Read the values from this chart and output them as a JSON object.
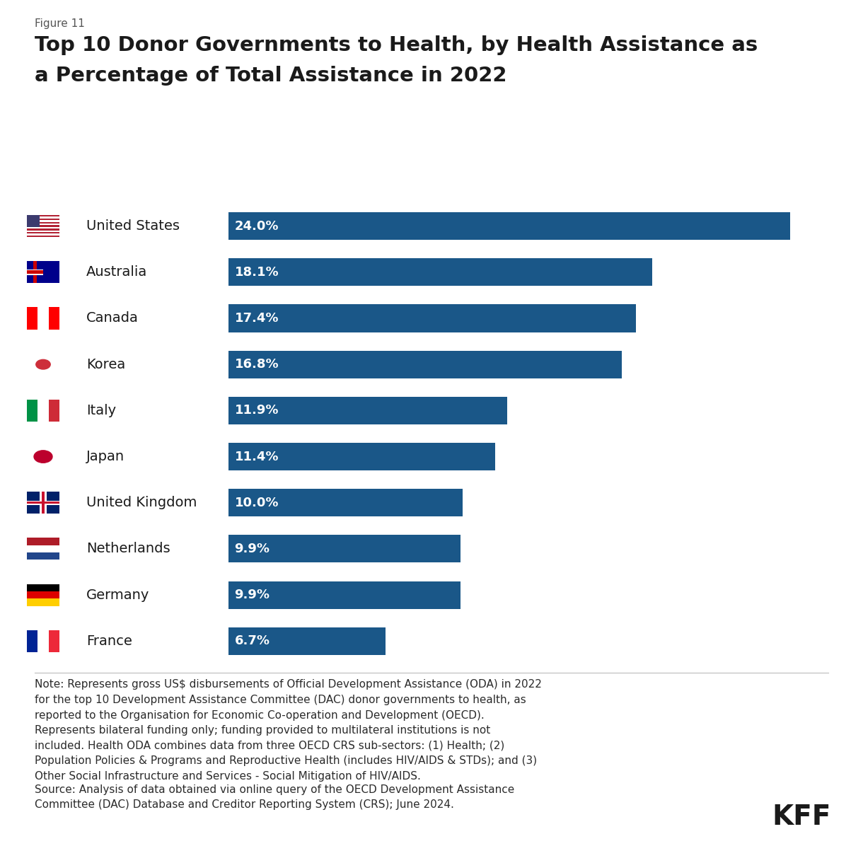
{
  "figure_label": "Figure 11",
  "title_line1": "Top 10 Donor Governments to Health, by Health Assistance as",
  "title_line2": "a Percentage of Total Assistance in 2022",
  "countries": [
    "United States",
    "Australia",
    "Canada",
    "Korea",
    "Italy",
    "Japan",
    "United Kingdom",
    "Netherlands",
    "Germany",
    "France"
  ],
  "values": [
    24.0,
    18.1,
    17.4,
    16.8,
    11.9,
    11.4,
    10.0,
    9.9,
    9.9,
    6.7
  ],
  "labels": [
    "24.0%",
    "18.1%",
    "17.4%",
    "16.8%",
    "11.9%",
    "11.4%",
    "10.0%",
    "9.9%",
    "9.9%",
    "6.7%"
  ],
  "bar_color": "#1a5788",
  "bar_text_color": "#ffffff",
  "background_color": "#ffffff",
  "text_color": "#1a1a1a",
  "note_color": "#2b2b2b",
  "note_text": "Note: Represents gross US$ disbursements of Official Development Assistance (ODA) in 2022\nfor the top 10 Development Assistance Committee (DAC) donor governments to health, as\nreported to the Organisation for Economic Co-operation and Development (OECD).\nRepresents bilateral funding only; funding provided to multilateral institutions is not\nincluded. Health ODA combines data from three OECD CRS sub-sectors: (1) Health; (2)\nPopulation Policies & Programs and Reproductive Health (includes HIV/AIDS & STDs); and (3)\nOther Social Infrastructure and Services - Social Mitigation of HIV/AIDS.",
  "source_text": "Source: Analysis of data obtained via online query of the OECD Development Assistance\nCommittee (DAC) Database and Creditor Reporting System (CRS); June 2024.",
  "kff_text": "KFF",
  "xlim": [
    0,
    26
  ],
  "bar_height": 0.6
}
